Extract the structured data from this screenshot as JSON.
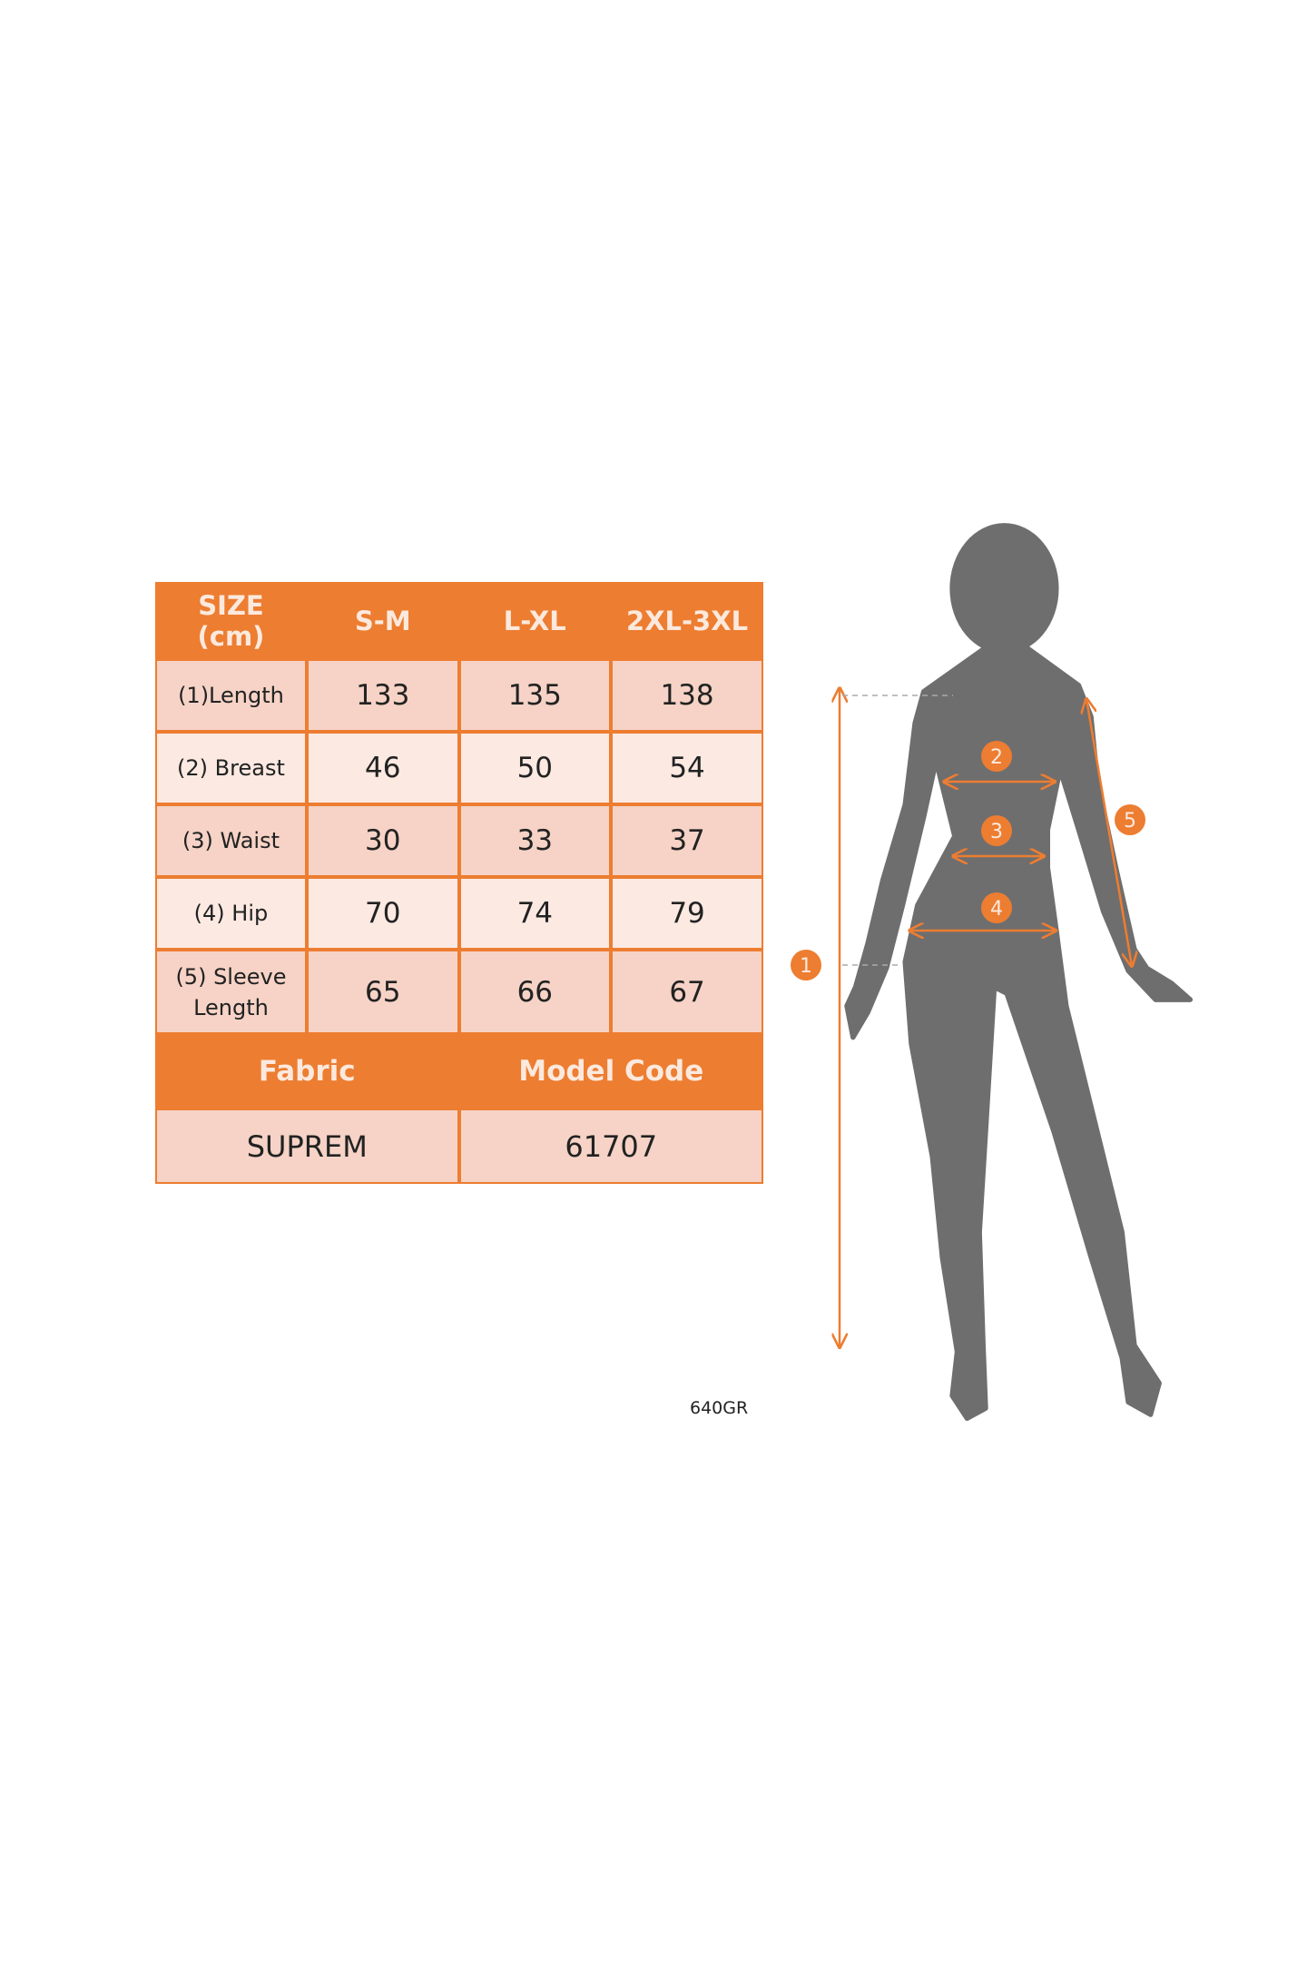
{
  "table": {
    "header": [
      "SIZE\n(cm)",
      "S-M",
      "L-XL",
      "2XL-3XL"
    ],
    "header_size_line1": "SIZE",
    "header_size_line2": "(cm)",
    "rows": [
      {
        "label": "(1)Length",
        "values": [
          "133",
          "135",
          "138"
        ]
      },
      {
        "label": "(2) Breast",
        "values": [
          "46",
          "50",
          "54"
        ]
      },
      {
        "label": "(3) Waist",
        "values": [
          "30",
          "33",
          "37"
        ]
      },
      {
        "label": "(4) Hip",
        "values": [
          "70",
          "74",
          "79"
        ]
      },
      {
        "label_line1": "(5) Sleeve",
        "label_line2": "Length",
        "values": [
          "65",
          "66",
          "67"
        ]
      }
    ],
    "fabric_label": "Fabric",
    "model_code_label": "Model Code",
    "fabric_value": "SUPREM",
    "model_code_value": "61707"
  },
  "note": "640GR",
  "figure": {
    "markers": [
      "1",
      "2",
      "3",
      "4",
      "5"
    ],
    "silhouette_color": "#6E6E6E",
    "accent_color": "#ED7D31"
  },
  "colors": {
    "header": "#ED7D31",
    "row_dark": "#F6D3C6",
    "row_light": "#FBE9E2"
  }
}
